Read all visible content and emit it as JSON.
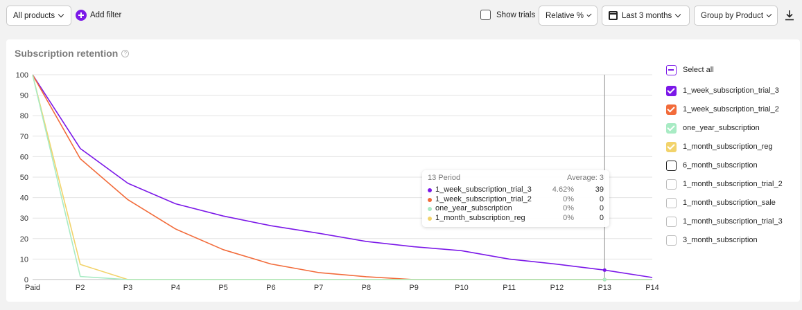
{
  "toolbar": {
    "products_label": "All products",
    "add_filter_label": "Add filter",
    "show_trials_label": "Show trials",
    "relative_label": "Relative %",
    "date_range_label": "Last 3 months",
    "group_by_label": "Group by Product"
  },
  "card": {
    "title": "Subscription retention",
    "help": "?"
  },
  "legend": {
    "select_all": "Select all",
    "items": [
      {
        "label": "1_week_subscription_trial_3",
        "checked": true,
        "color": "#7b18e8"
      },
      {
        "label": "1_week_subscription_trial_2",
        "checked": true,
        "color": "#f26b3a"
      },
      {
        "label": "one_year_subscription",
        "checked": true,
        "color": "#a8ebc4"
      },
      {
        "label": "1_month_subscription_reg",
        "checked": true,
        "color": "#f2d36b"
      },
      {
        "label": "6_month_subscription",
        "checked": false,
        "color": "#222222"
      },
      {
        "label": "1_month_subscription_trial_2",
        "checked": false,
        "color": "#bdbdbd"
      },
      {
        "label": "1_month_subscription_sale",
        "checked": false,
        "color": "#bdbdbd"
      },
      {
        "label": "1_month_subscription_trial_3",
        "checked": false,
        "color": "#bdbdbd"
      },
      {
        "label": "3_month_subscription",
        "checked": false,
        "color": "#bdbdbd"
      }
    ]
  },
  "tooltip": {
    "period": "13 Period",
    "average": "Average: 3",
    "rows": [
      {
        "name": "1_week_subscription_trial_3",
        "pct": "4.62%",
        "value": "39",
        "color": "#7b18e8"
      },
      {
        "name": "1_week_subscription_trial_2",
        "pct": "0%",
        "value": "0",
        "color": "#f26b3a"
      },
      {
        "name": "one_year_subscription",
        "pct": "0%",
        "value": "0",
        "color": "#a8ebc4"
      },
      {
        "name": "1_month_subscription_reg",
        "pct": "0%",
        "value": "0",
        "color": "#f2d36b"
      }
    ]
  },
  "chart_data": {
    "type": "line",
    "x": [
      "Paid",
      "P2",
      "P3",
      "P4",
      "P5",
      "P6",
      "P7",
      "P8",
      "P9",
      "P10",
      "P11",
      "P12",
      "P13",
      "P14"
    ],
    "yticks": [
      "0",
      "10",
      "20",
      "30",
      "40",
      "50",
      "60",
      "70",
      "80",
      "90",
      "100"
    ],
    "ylim": [
      0,
      100
    ],
    "grid": true,
    "highlight_index": 12,
    "series": [
      {
        "name": "1_week_subscription_trial_3",
        "color": "#7b18e8",
        "values": [
          100,
          64,
          47,
          37,
          31,
          26.3,
          22.6,
          18.6,
          16,
          14.1,
          10,
          7.5,
          4.62,
          1
        ]
      },
      {
        "name": "1_week_subscription_trial_2",
        "color": "#f26b3a",
        "values": [
          100,
          59,
          39,
          24.7,
          14.6,
          7.6,
          3.4,
          1.4,
          0,
          0,
          0,
          0,
          0,
          0
        ]
      },
      {
        "name": "1_month_subscription_reg",
        "color": "#f2d36b",
        "values": [
          100,
          7.4,
          0,
          0,
          0,
          0,
          0,
          0,
          0,
          0,
          0,
          0,
          0,
          0
        ]
      },
      {
        "name": "one_year_subscription",
        "color": "#a8ebc4",
        "values": [
          100,
          1.5,
          0,
          0,
          0,
          0,
          0,
          0,
          0,
          0,
          0,
          0,
          0,
          0
        ]
      }
    ]
  }
}
